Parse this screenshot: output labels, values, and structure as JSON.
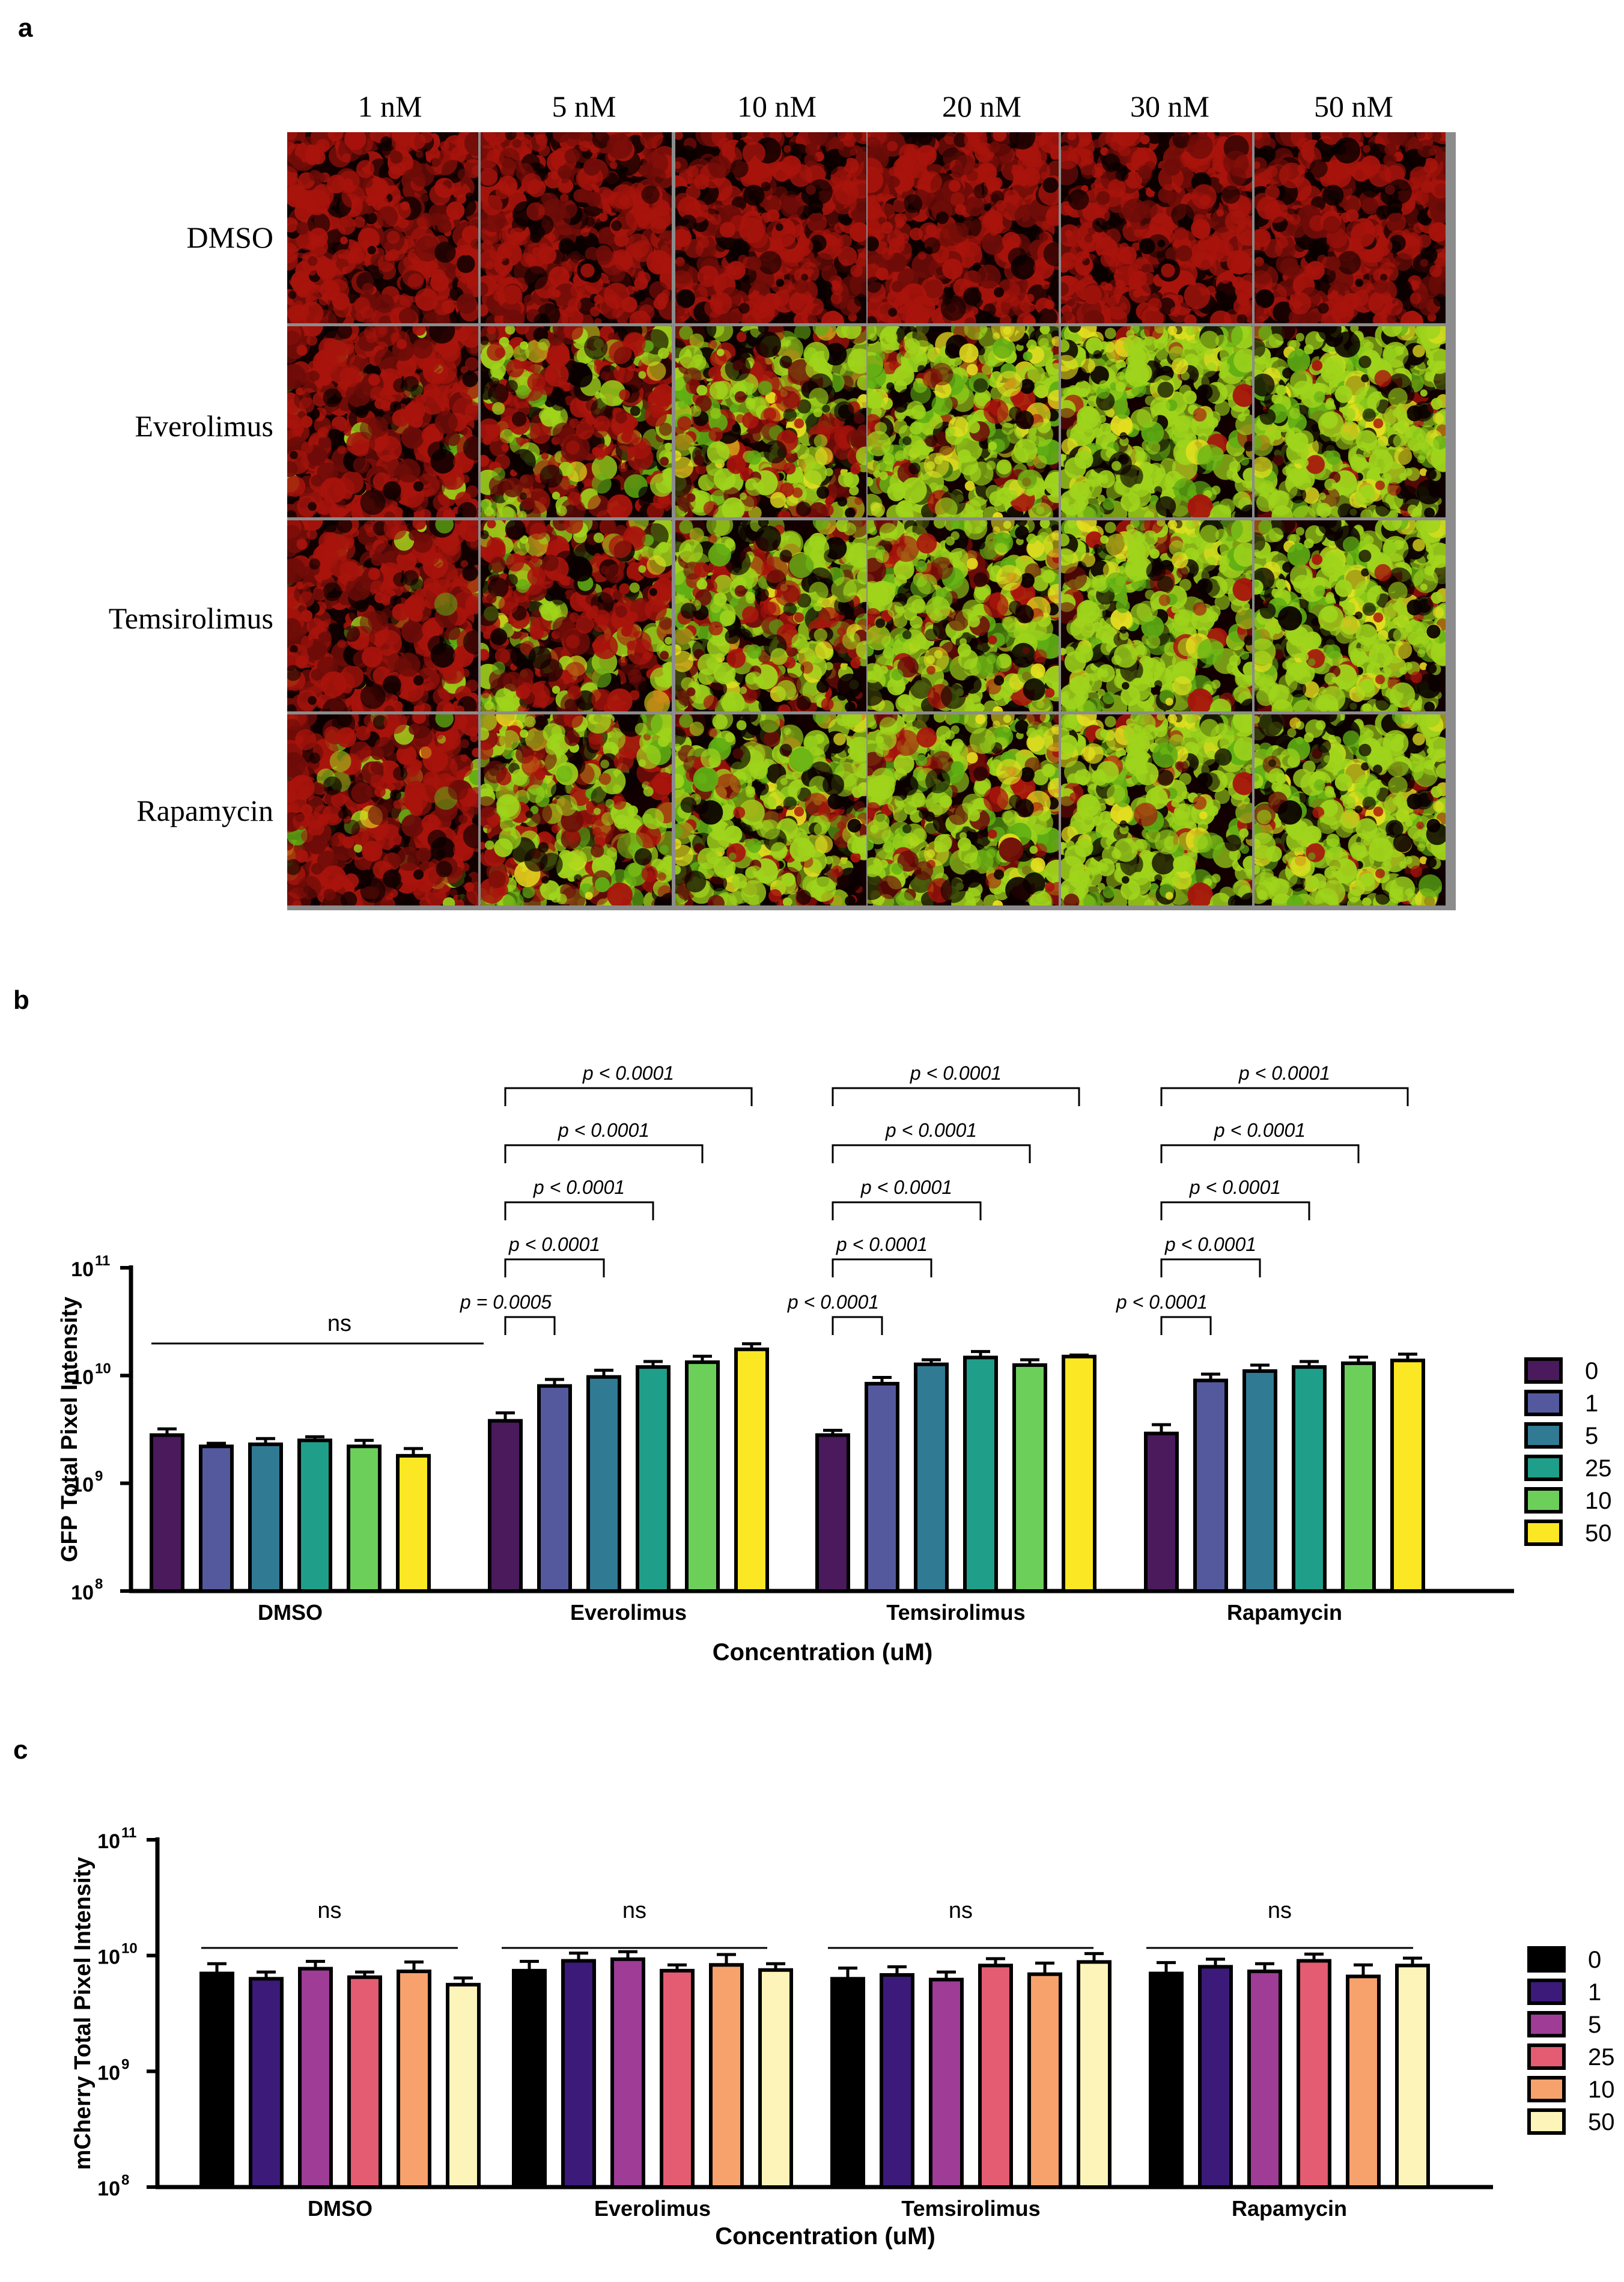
{
  "panel_a": {
    "letter": "a",
    "columns": [
      "1 nM",
      "5 nM",
      "10 nM",
      "20 nM",
      "30 nM",
      "50 nM"
    ],
    "rows": [
      "DMSO",
      "Everolimus",
      "Temsirolimus",
      "Rapamycin"
    ],
    "green_level": [
      [
        0.0,
        0.0,
        0.0,
        0.0,
        0.0,
        0.0
      ],
      [
        0.05,
        0.35,
        0.6,
        0.85,
        0.92,
        0.9
      ],
      [
        0.05,
        0.3,
        0.65,
        0.8,
        0.88,
        0.9
      ],
      [
        0.1,
        0.55,
        0.75,
        0.8,
        0.9,
        0.88
      ]
    ],
    "colors": {
      "red": "#a8140c",
      "green": "#9fd41c",
      "yellow": "#e8e020",
      "background": "#120000"
    }
  },
  "panel_b": {
    "letter": "b",
    "chart_data": {
      "type": "bar",
      "ylabel": "GFP Total Pixel Intensity",
      "xlabel": "Concentration (uM)",
      "yscale": "log",
      "ylim": [
        100000000,
        100000000000
      ],
      "y_ticks": [
        "10",
        "10",
        "10",
        "10"
      ],
      "y_tick_exponents": [
        "8",
        "9",
        "10",
        "11"
      ],
      "y_tick_values": [
        100000000,
        1000000000,
        10000000000,
        100000000000
      ],
      "categories": [
        "DMSO",
        "Everolimus",
        "Temsirolimus",
        "Rapamycin"
      ],
      "series": [
        {
          "name": "0",
          "color": "#4a1a5c",
          "values": [
            2800000000,
            3800000000,
            2800000000,
            2900000000
          ],
          "errors": [
            400000000,
            700000000,
            300000000,
            600000000
          ]
        },
        {
          "name": "1",
          "color": "#54599e",
          "values": [
            2200000000,
            8000000000,
            8400000000,
            9000000000
          ],
          "errors": [
            150000000,
            1200000000,
            1200000000,
            1300000000
          ]
        },
        {
          "name": "5",
          "color": "#317a93",
          "values": [
            2300000000,
            9700000000,
            12700000000,
            11000000000
          ],
          "errors": [
            300000000,
            1500000000,
            1300000000,
            1500000000
          ]
        },
        {
          "name": "25",
          "color": "#1f9e8a",
          "values": [
            2500000000,
            12000000000,
            14700000000,
            12000000000
          ],
          "errors": [
            200000000,
            1500000000,
            2000000000,
            1500000000
          ]
        },
        {
          "name": "10",
          "color": "#6ccf5a",
          "values": [
            2200000000,
            13300000000,
            12500000000,
            13000000000
          ],
          "errors": [
            300000000,
            1800000000,
            1500000000,
            1800000000
          ]
        },
        {
          "name": "50",
          "color": "#fbe723",
          "values": [
            1800000000,
            17500000000,
            15000000000,
            13800000000
          ],
          "errors": [
            300000000,
            2200000000,
            500000000,
            2000000000
          ]
        }
      ],
      "annotations": {
        "ns_label": "ns",
        "brackets": [
          [
            "p = 0.0005",
            "p < 0.0001",
            "p < 0.0001",
            "p < 0.0001",
            "p < 0.0001"
          ],
          [
            "p < 0.0001",
            "p < 0.0001",
            "p < 0.0001",
            "p < 0.0001",
            "p < 0.0001"
          ],
          [
            "p < 0.0001",
            "p < 0.0001",
            "p < 0.0001",
            "p < 0.0001",
            "p < 0.0001"
          ]
        ]
      }
    }
  },
  "panel_c": {
    "letter": "c",
    "chart_data": {
      "type": "bar",
      "ylabel": "mCherry Total Pixel Intensity",
      "xlabel": "Concentration (uM)",
      "yscale": "log",
      "ylim": [
        100000000,
        100000000000
      ],
      "y_ticks": [
        "10",
        "10",
        "10",
        "10"
      ],
      "y_tick_exponents": [
        "8",
        "9",
        "10",
        "11"
      ],
      "y_tick_values": [
        100000000,
        1000000000,
        10000000000,
        100000000000
      ],
      "categories": [
        "DMSO",
        "Everolimus",
        "Temsirolimus",
        "Rapamycin"
      ],
      "series": [
        {
          "name": "0",
          "color": "#000000",
          "values": [
            7000000000,
            7400000000,
            6300000000,
            7000000000
          ],
          "errors": [
            1500000000,
            1500000000,
            1500000000,
            1700000000
          ]
        },
        {
          "name": "1",
          "color": "#3b1a7a",
          "values": [
            6300000000,
            9000000000,
            6800000000,
            8000000000
          ],
          "errors": [
            900000000,
            1500000000,
            1200000000,
            1300000000
          ]
        },
        {
          "name": "5",
          "color": "#9e3c96",
          "values": [
            7700000000,
            9300000000,
            6200000000,
            7300000000
          ],
          "errors": [
            1200000000,
            1500000000,
            1000000000,
            1200000000
          ]
        },
        {
          "name": "25",
          "color": "#e45c72",
          "values": [
            6500000000,
            7400000000,
            8200000000,
            9000000000
          ],
          "errors": [
            700000000,
            900000000,
            1200000000,
            1300000000
          ]
        },
        {
          "name": "10",
          "color": "#f7a26c",
          "values": [
            7300000000,
            8300000000,
            6900000000,
            6600000000
          ],
          "errors": [
            1500000000,
            1900000000,
            1700000000,
            1700000000
          ]
        },
        {
          "name": "50",
          "color": "#fcf4b9",
          "values": [
            5600000000,
            7500000000,
            8800000000,
            8200000000
          ],
          "errors": [
            800000000,
            1000000000,
            1600000000,
            1300000000
          ]
        }
      ],
      "annotations": {
        "ns_labels": [
          "ns",
          "ns",
          "ns",
          "ns"
        ]
      }
    }
  }
}
